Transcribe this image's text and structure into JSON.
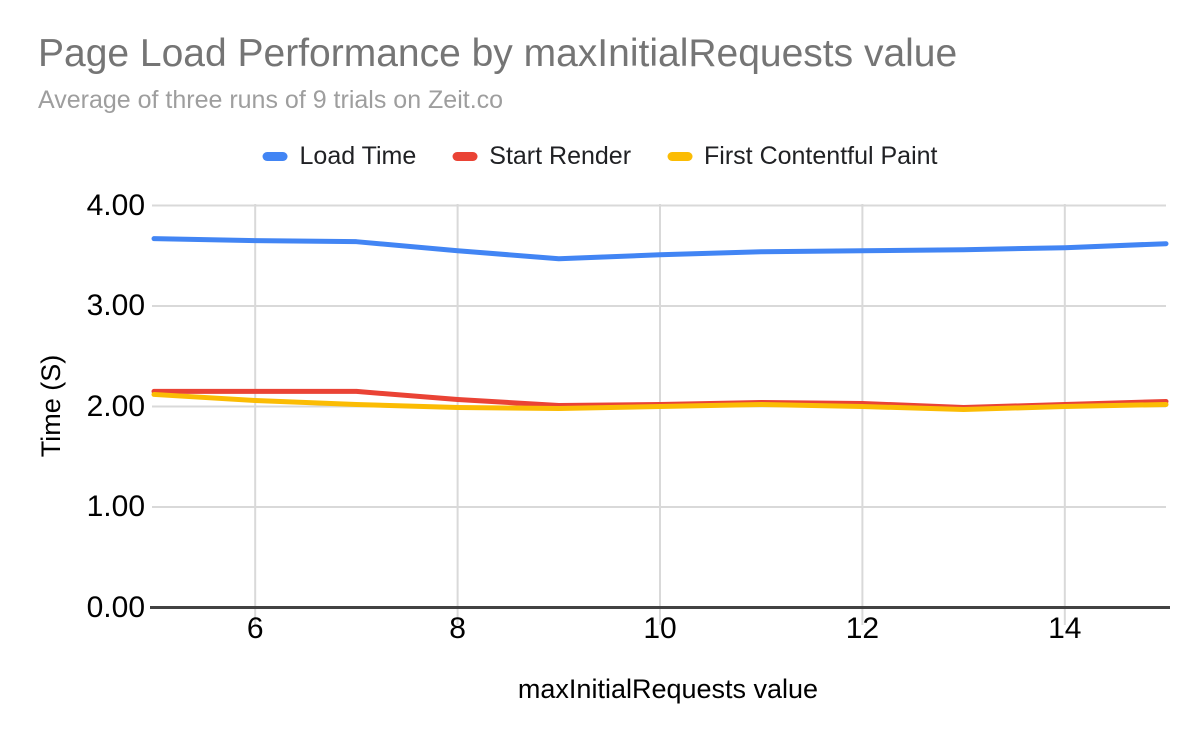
{
  "page": {
    "background": "#ffffff"
  },
  "header": {
    "title": "Page Load Performance by maxInitialRequests value",
    "subtitle": "Average of three runs of 9 trials on Zeit.co",
    "title_color": "#757575",
    "subtitle_color": "#9e9e9e"
  },
  "legend": {
    "items": [
      {
        "label": "Load Time",
        "color": "#4285F4"
      },
      {
        "label": "Start Render",
        "color": "#EA4335"
      },
      {
        "label": "First Contentful Paint",
        "color": "#FBBC04"
      }
    ]
  },
  "chart_data": {
    "type": "line",
    "title": "Page Load Performance by maxInitialRequests value",
    "subtitle": "Average of three runs of 9 trials on Zeit.co",
    "xlabel": "maxInitialRequests value",
    "ylabel": "Time (S)",
    "x": [
      5,
      6,
      7,
      8,
      9,
      10,
      11,
      12,
      13,
      14,
      15
    ],
    "series": [
      {
        "name": "Load Time",
        "color": "#4285F4",
        "values": [
          3.67,
          3.65,
          3.64,
          3.55,
          3.47,
          3.51,
          3.54,
          3.55,
          3.56,
          3.58,
          3.62
        ]
      },
      {
        "name": "Start Render",
        "color": "#EA4335",
        "values": [
          2.15,
          2.15,
          2.15,
          2.07,
          2.01,
          2.02,
          2.04,
          2.03,
          1.99,
          2.02,
          2.05
        ]
      },
      {
        "name": "First Contentful Paint",
        "color": "#FBBC04",
        "values": [
          2.12,
          2.06,
          2.02,
          1.99,
          1.98,
          2.0,
          2.02,
          2.0,
          1.97,
          2.0,
          2.02
        ]
      }
    ],
    "xlim": [
      5,
      15
    ],
    "ylim": [
      0,
      4
    ],
    "xticks": [
      {
        "value": 6,
        "label": "6"
      },
      {
        "value": 8,
        "label": "8"
      },
      {
        "value": 10,
        "label": "10"
      },
      {
        "value": 12,
        "label": "12"
      },
      {
        "value": 14,
        "label": "14"
      }
    ],
    "yticks": [
      {
        "value": 0,
        "label": "0.00"
      },
      {
        "value": 1,
        "label": "1.00"
      },
      {
        "value": 2,
        "label": "2.00"
      },
      {
        "value": 3,
        "label": "3.00"
      },
      {
        "value": 4,
        "label": "4.00"
      }
    ],
    "grid": true,
    "legend_position": "top-center",
    "gridline_color": "#d9d9d9",
    "axis_line_color": "#424242"
  }
}
